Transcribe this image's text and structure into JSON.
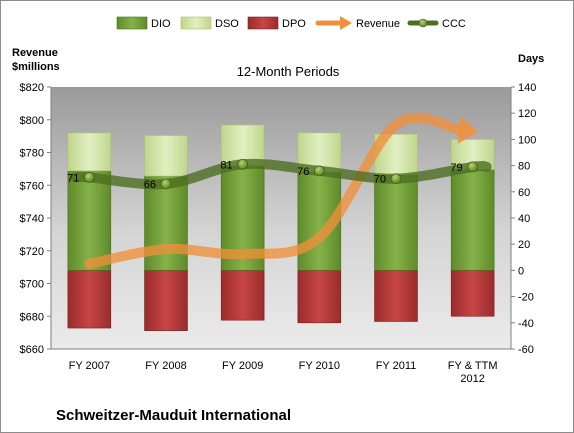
{
  "chart_data": {
    "type": "bar",
    "title": "12-Month Periods",
    "company": "Schweitzer-Mauduit International",
    "categories": [
      [
        "FY 2007"
      ],
      [
        "FY 2008"
      ],
      [
        "FY 2009"
      ],
      [
        "FY 2010"
      ],
      [
        "FY 2011"
      ],
      [
        "FY & TTM",
        "2012"
      ]
    ],
    "left_axis": {
      "label_line1": "Revenue",
      "label_line2": "$millions",
      "range": [
        660,
        820
      ],
      "ticks": [
        "$660",
        "$680",
        "$700",
        "$720",
        "$740",
        "$760",
        "$780",
        "$800",
        "$820"
      ]
    },
    "right_axis": {
      "label": "Days",
      "range": [
        -60,
        140
      ],
      "ticks": [
        "-60",
        "-40",
        "-20",
        "0",
        "20",
        "40",
        "60",
        "80",
        "100",
        "120",
        "140"
      ]
    },
    "series": [
      {
        "name": "DIO",
        "values": [
          76,
          72,
          80,
          75,
          73,
          77
        ],
        "color": "#76a33b"
      },
      {
        "name": "DSO",
        "values": [
          29,
          31,
          31,
          30,
          31,
          23
        ],
        "color": "#d4e6a8"
      },
      {
        "name": "DPO",
        "values": [
          -44,
          -46,
          -38,
          -40,
          -39,
          -35
        ],
        "color": "#b83a3a"
      },
      {
        "name": "Revenue",
        "values": [
          712,
          721,
          718,
          728,
          797,
          793
        ],
        "color": "#f0903a"
      },
      {
        "name": "CCC",
        "values": [
          71,
          66,
          81,
          76,
          70,
          79
        ],
        "color": "#4e6e22"
      }
    ],
    "ccc_labels": [
      "71",
      "66",
      "81",
      "76",
      "70",
      "79"
    ],
    "grid": false,
    "legend_position": "top"
  }
}
